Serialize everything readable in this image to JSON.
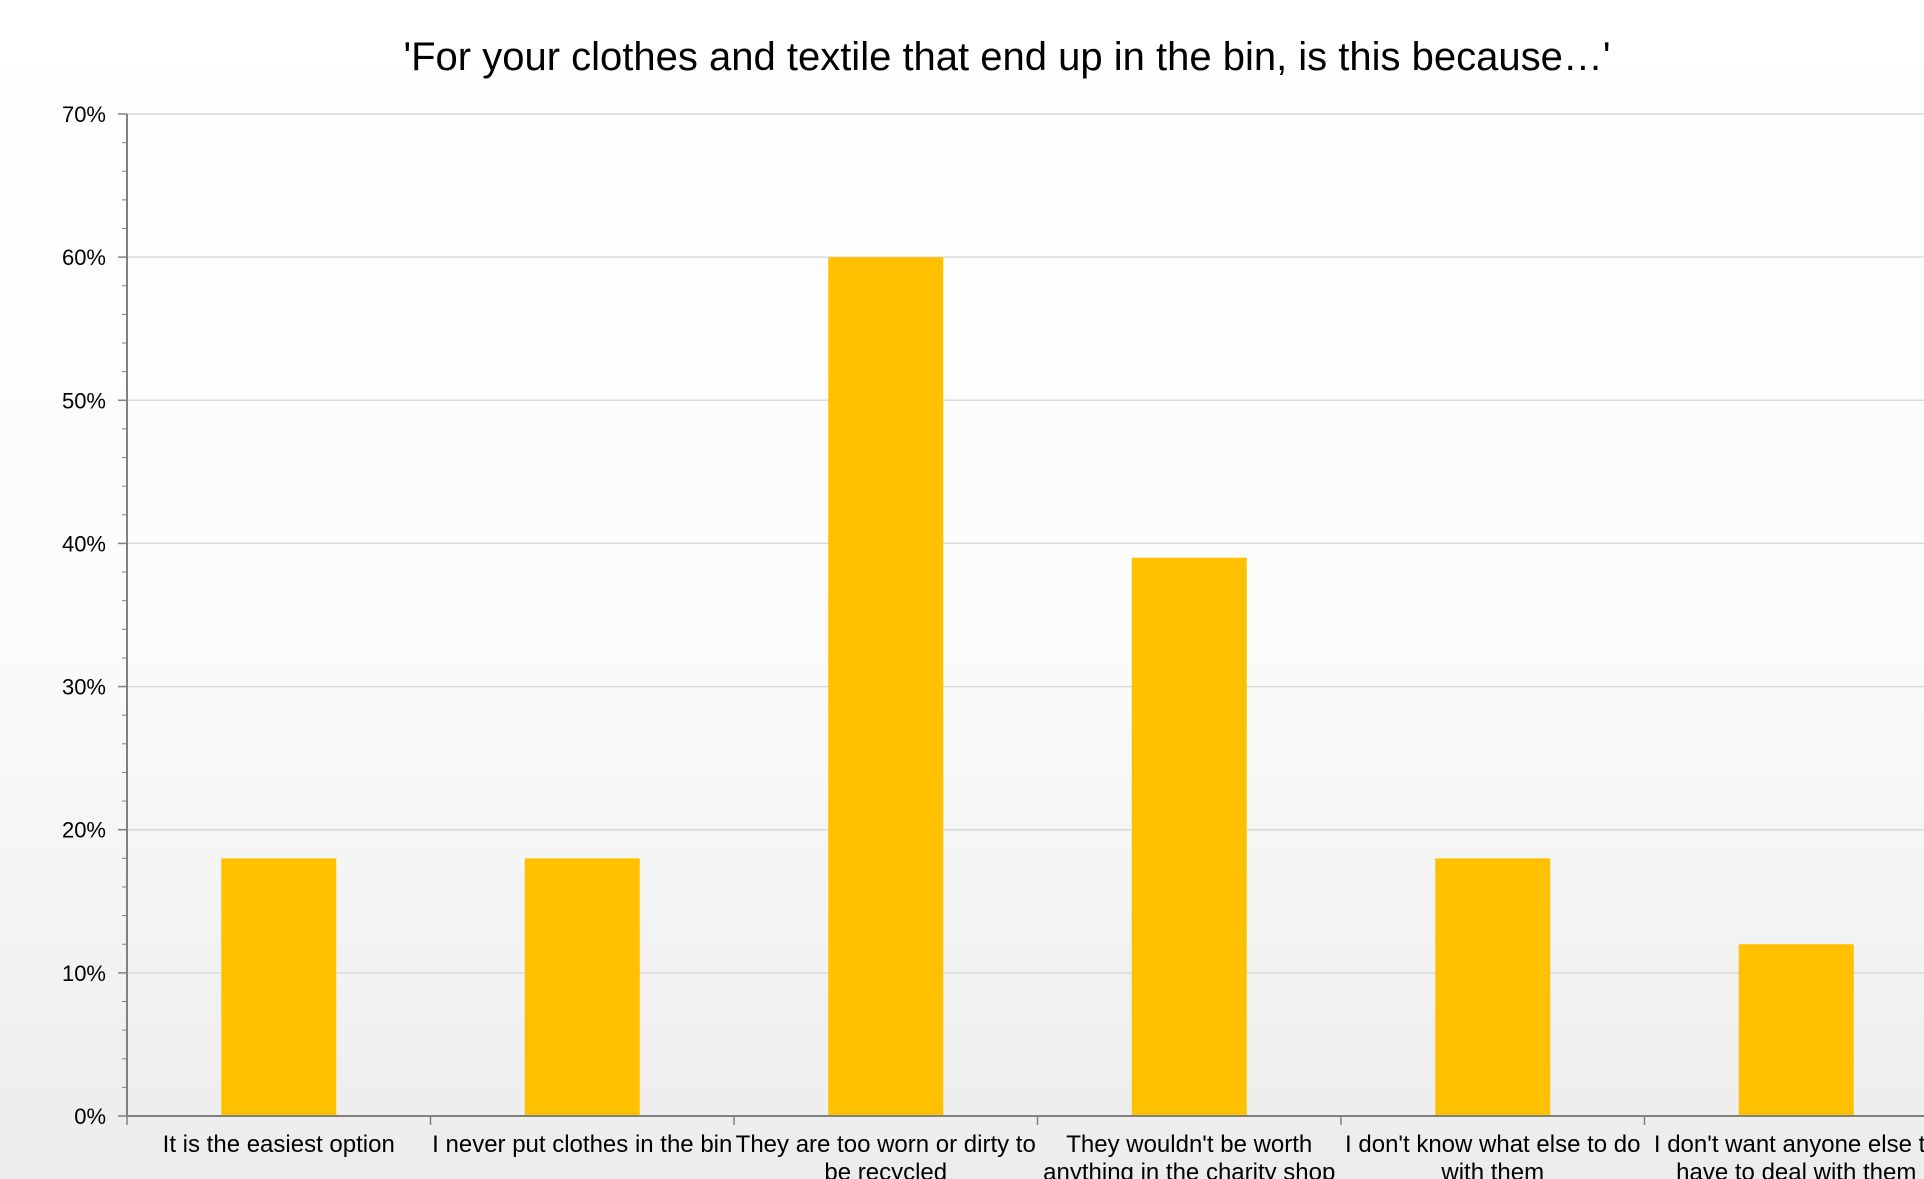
{
  "chart_data": {
    "type": "bar",
    "title": "'For your clothes and textile that end up in the bin, is this because…'",
    "xlabel": "",
    "ylabel": "",
    "categories": [
      "It is the easiest option",
      "I never put clothes in the bin",
      "They are too worn or dirty to be recycled",
      "They wouldn't be worth anything in the charity shop",
      "I don't know what else to do with them",
      "I don't want anyone else to have to deal with them"
    ],
    "category_lines": [
      [
        "It is the easiest option"
      ],
      [
        "I never put clothes in the bin"
      ],
      [
        "They are too worn or dirty to",
        "be recycled"
      ],
      [
        "They wouldn't be worth",
        "anything in the charity shop"
      ],
      [
        "I don't know what else to do",
        "with them"
      ],
      [
        "I don't want anyone else to",
        "have to deal with them"
      ]
    ],
    "values": [
      18,
      18,
      60,
      39,
      18,
      12
    ],
    "ylim": [
      0,
      70
    ],
    "yticks": [
      0,
      10,
      20,
      30,
      40,
      50,
      60,
      70
    ],
    "ytick_labels": [
      "0%",
      "10%",
      "20%",
      "30%",
      "40%",
      "50%",
      "60%",
      "70%"
    ],
    "grid": true,
    "legend": "none",
    "colors": {
      "bar": "#FFC000",
      "grid": "#d9d9d9",
      "axis": "#808080"
    }
  }
}
